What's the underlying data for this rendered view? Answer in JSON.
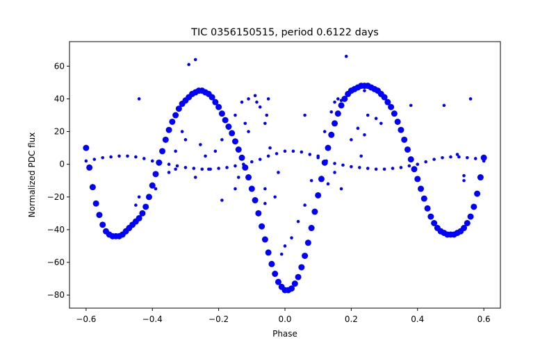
{
  "chart_data": {
    "type": "scatter",
    "title": "TIC 0356150515, period 0.6122 days",
    "xlabel": "Phase",
    "ylabel": "Normalized PDC flux",
    "xlim": [
      -0.65,
      0.65
    ],
    "ylim": [
      -88,
      75
    ],
    "xticks": [
      -0.6,
      -0.4,
      -0.2,
      0.0,
      0.2,
      0.4,
      0.6
    ],
    "xtick_labels": [
      "−0.6",
      "−0.4",
      "−0.2",
      "0.0",
      "0.2",
      "0.4",
      "0.6"
    ],
    "yticks": [
      -80,
      -60,
      -40,
      -20,
      0,
      20,
      40,
      60
    ],
    "ytick_labels": [
      "−80",
      "−60",
      "−40",
      "−20",
      "0",
      "20",
      "40",
      "60"
    ],
    "grid": false,
    "marker_color": "#0000ff",
    "series": [
      {
        "description": "main light curve (dense band)",
        "points": [
          [
            -0.6,
            10
          ],
          [
            -0.59,
            -2
          ],
          [
            -0.58,
            -14
          ],
          [
            -0.57,
            -24
          ],
          [
            -0.56,
            -31
          ],
          [
            -0.55,
            -37
          ],
          [
            -0.54,
            -41
          ],
          [
            -0.53,
            -43
          ],
          [
            -0.52,
            -44
          ],
          [
            -0.51,
            -44
          ],
          [
            -0.5,
            -44
          ],
          [
            -0.49,
            -43
          ],
          [
            -0.48,
            -41
          ],
          [
            -0.47,
            -39
          ],
          [
            -0.46,
            -37
          ],
          [
            -0.45,
            -35
          ],
          [
            -0.44,
            -33
          ],
          [
            -0.43,
            -30
          ],
          [
            -0.42,
            -26
          ],
          [
            -0.41,
            -20
          ],
          [
            -0.4,
            -13
          ],
          [
            -0.39,
            -6
          ],
          [
            -0.38,
            1
          ],
          [
            -0.37,
            8
          ],
          [
            -0.36,
            15
          ],
          [
            -0.35,
            21
          ],
          [
            -0.34,
            26
          ],
          [
            -0.33,
            30
          ],
          [
            -0.32,
            34
          ],
          [
            -0.31,
            37
          ],
          [
            -0.3,
            39
          ],
          [
            -0.29,
            41
          ],
          [
            -0.28,
            43
          ],
          [
            -0.27,
            44
          ],
          [
            -0.26,
            45
          ],
          [
            -0.25,
            45
          ],
          [
            -0.24,
            44
          ],
          [
            -0.23,
            43
          ],
          [
            -0.22,
            41
          ],
          [
            -0.21,
            38
          ],
          [
            -0.2,
            35
          ],
          [
            -0.19,
            31
          ],
          [
            -0.18,
            27
          ],
          [
            -0.17,
            23
          ],
          [
            -0.16,
            19
          ],
          [
            -0.15,
            14
          ],
          [
            -0.14,
            9
          ],
          [
            -0.13,
            4
          ],
          [
            -0.12,
            -2
          ],
          [
            -0.11,
            -8
          ],
          [
            -0.1,
            -15
          ],
          [
            -0.09,
            -22
          ],
          [
            -0.08,
            -30
          ],
          [
            -0.07,
            -38
          ],
          [
            -0.06,
            -46
          ],
          [
            -0.05,
            -54
          ],
          [
            -0.04,
            -61
          ],
          [
            -0.03,
            -67
          ],
          [
            -0.02,
            -72
          ],
          [
            -0.01,
            -75
          ],
          [
            0.0,
            -77
          ],
          [
            0.01,
            -77
          ],
          [
            0.02,
            -76
          ],
          [
            0.03,
            -73
          ],
          [
            0.04,
            -69
          ],
          [
            0.05,
            -63
          ],
          [
            0.06,
            -56
          ],
          [
            0.07,
            -48
          ],
          [
            0.08,
            -39
          ],
          [
            0.09,
            -29
          ],
          [
            0.1,
            -19
          ],
          [
            0.11,
            -9
          ],
          [
            0.12,
            1
          ],
          [
            0.13,
            10
          ],
          [
            0.14,
            18
          ],
          [
            0.15,
            25
          ],
          [
            0.16,
            31
          ],
          [
            0.17,
            36
          ],
          [
            0.18,
            40
          ],
          [
            0.19,
            43
          ],
          [
            0.2,
            45
          ],
          [
            0.21,
            46
          ],
          [
            0.22,
            47
          ],
          [
            0.23,
            48
          ],
          [
            0.24,
            48
          ],
          [
            0.25,
            48
          ],
          [
            0.26,
            47
          ],
          [
            0.27,
            46
          ],
          [
            0.28,
            45
          ],
          [
            0.29,
            43
          ],
          [
            0.3,
            41
          ],
          [
            0.31,
            38
          ],
          [
            0.32,
            35
          ],
          [
            0.33,
            31
          ],
          [
            0.34,
            26
          ],
          [
            0.35,
            21
          ],
          [
            0.36,
            15
          ],
          [
            0.37,
            9
          ],
          [
            0.38,
            3
          ],
          [
            0.39,
            -3
          ],
          [
            0.4,
            -9
          ],
          [
            0.41,
            -15
          ],
          [
            0.42,
            -21
          ],
          [
            0.43,
            -27
          ],
          [
            0.44,
            -32
          ],
          [
            0.45,
            -36
          ],
          [
            0.46,
            -39
          ],
          [
            0.47,
            -41
          ],
          [
            0.48,
            -42
          ],
          [
            0.49,
            -43
          ],
          [
            0.5,
            -43
          ],
          [
            0.51,
            -43
          ],
          [
            0.52,
            -42
          ],
          [
            0.53,
            -41
          ],
          [
            0.54,
            -39
          ],
          [
            0.55,
            -36
          ],
          [
            0.56,
            -32
          ],
          [
            0.57,
            -26
          ],
          [
            0.58,
            -18
          ],
          [
            0.59,
            -8
          ],
          [
            0.6,
            4
          ]
        ]
      },
      {
        "description": "secondary sinusoidal component",
        "points": [
          [
            -0.6,
            2
          ],
          [
            -0.575,
            3
          ],
          [
            -0.55,
            4
          ],
          [
            -0.525,
            4.5
          ],
          [
            -0.5,
            5
          ],
          [
            -0.475,
            5
          ],
          [
            -0.45,
            4.5
          ],
          [
            -0.425,
            3.5
          ],
          [
            -0.4,
            2
          ],
          [
            -0.375,
            1
          ],
          [
            -0.35,
            0
          ],
          [
            -0.325,
            -1
          ],
          [
            -0.3,
            -2
          ],
          [
            -0.275,
            -2.5
          ],
          [
            -0.25,
            -3
          ],
          [
            -0.225,
            -3
          ],
          [
            -0.2,
            -2.5
          ],
          [
            -0.175,
            -2
          ],
          [
            -0.15,
            -1
          ],
          [
            -0.125,
            0
          ],
          [
            -0.1,
            1.5
          ],
          [
            -0.075,
            3
          ],
          [
            -0.05,
            5
          ],
          [
            -0.025,
            6.5
          ],
          [
            0.0,
            8
          ],
          [
            0.025,
            8
          ],
          [
            0.05,
            7.5
          ],
          [
            0.075,
            6
          ],
          [
            0.1,
            4
          ],
          [
            0.125,
            2
          ],
          [
            0.15,
            0.5
          ],
          [
            0.175,
            -0.5
          ],
          [
            0.2,
            -1.5
          ],
          [
            0.225,
            -2
          ],
          [
            0.25,
            -2.5
          ],
          [
            0.275,
            -3
          ],
          [
            0.3,
            -3
          ],
          [
            0.325,
            -2.5
          ],
          [
            0.35,
            -2
          ],
          [
            0.375,
            -1
          ],
          [
            0.4,
            0
          ],
          [
            0.425,
            1.5
          ],
          [
            0.45,
            3
          ],
          [
            0.475,
            4
          ],
          [
            0.5,
            4.5
          ],
          [
            0.525,
            4.5
          ],
          [
            0.55,
            4
          ],
          [
            0.575,
            3.5
          ],
          [
            0.6,
            2
          ]
        ]
      },
      {
        "description": "sparse transition and outlier points",
        "points": [
          [
            -0.44,
            40
          ],
          [
            -0.39,
            -15
          ],
          [
            -0.33,
            8
          ],
          [
            -0.31,
            20
          ],
          [
            -0.3,
            15
          ],
          [
            -0.29,
            61
          ],
          [
            -0.27,
            64
          ],
          [
            -0.255,
            12
          ],
          [
            -0.24,
            5
          ],
          [
            -0.23,
            -3
          ],
          [
            -0.21,
            8
          ],
          [
            -0.19,
            15
          ],
          [
            -0.17,
            22
          ],
          [
            -0.15,
            30
          ],
          [
            -0.13,
            38
          ],
          [
            -0.11,
            40
          ],
          [
            -0.09,
            42
          ],
          [
            -0.075,
            35
          ],
          [
            -0.06,
            25
          ],
          [
            -0.055,
            30
          ],
          [
            -0.045,
            10
          ],
          [
            -0.03,
            -20
          ],
          [
            -0.02,
            -5
          ],
          [
            -0.05,
            40
          ],
          [
            -0.085,
            38
          ],
          [
            -0.12,
            25
          ],
          [
            -0.15,
            -15
          ],
          [
            -0.14,
            -8
          ],
          [
            -0.27,
            -8
          ],
          [
            -0.33,
            -3
          ],
          [
            0.0,
            -50
          ],
          [
            0.02,
            -45
          ],
          [
            0.04,
            -35
          ],
          [
            0.06,
            -25
          ],
          [
            0.08,
            -10
          ],
          [
            0.1,
            5
          ],
          [
            0.12,
            20
          ],
          [
            0.14,
            32
          ],
          [
            0.15,
            38
          ],
          [
            0.16,
            40
          ],
          [
            0.17,
            39
          ],
          [
            0.06,
            30
          ],
          [
            0.185,
            66
          ],
          [
            0.2,
            15
          ],
          [
            0.22,
            22
          ],
          [
            0.24,
            18
          ],
          [
            0.23,
            5
          ],
          [
            0.25,
            30
          ],
          [
            0.275,
            28
          ],
          [
            0.29,
            25
          ],
          [
            0.38,
            36
          ],
          [
            0.48,
            36
          ],
          [
            0.56,
            40
          ],
          [
            0.54,
            -7
          ],
          [
            0.24,
            45
          ],
          [
            -0.11,
            20
          ],
          [
            -0.01,
            -55
          ],
          [
            -0.19,
            -22
          ],
          [
            -0.06,
            -15
          ],
          [
            0.13,
            -12
          ],
          [
            0.15,
            -5
          ],
          [
            0.11,
            -8
          ],
          [
            0.17,
            -15
          ],
          [
            -0.35,
            -5
          ],
          [
            -0.44,
            -20
          ],
          [
            -0.45,
            -25
          ],
          [
            -0.06,
            -24
          ],
          [
            0.54,
            -10
          ],
          [
            0.52,
            6
          ]
        ]
      }
    ]
  }
}
